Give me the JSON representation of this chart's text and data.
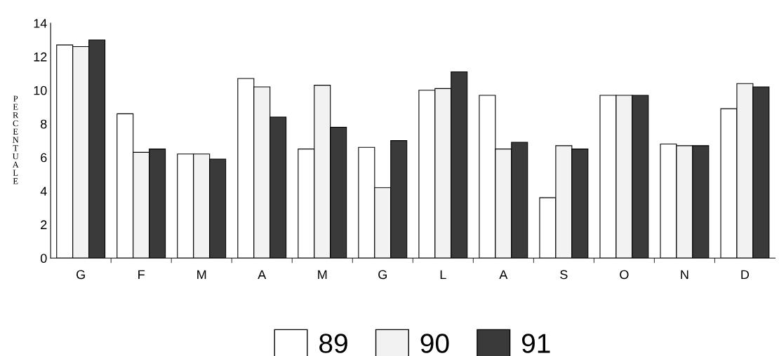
{
  "chart_data": {
    "type": "bar",
    "ylabel": "PERCENTUALE",
    "categories": [
      "G",
      "F",
      "M",
      "A",
      "M",
      "G",
      "L",
      "A",
      "S",
      "O",
      "N",
      "D"
    ],
    "series": [
      {
        "name": "89",
        "color": "#ffffff",
        "values": [
          12.7,
          8.6,
          6.2,
          10.7,
          6.5,
          6.6,
          10.0,
          9.7,
          3.6,
          9.7,
          6.8,
          8.9
        ]
      },
      {
        "name": "90",
        "color": "#f2f2f2",
        "values": [
          12.6,
          6.3,
          6.2,
          10.2,
          10.3,
          4.2,
          10.1,
          6.5,
          6.7,
          9.7,
          6.7,
          10.4
        ]
      },
      {
        "name": "91",
        "color": "#3a3a3a",
        "values": [
          13.0,
          6.5,
          5.9,
          8.4,
          7.8,
          7.0,
          11.1,
          6.9,
          6.5,
          9.7,
          6.7,
          10.2
        ]
      }
    ],
    "ylim": [
      0,
      14
    ],
    "yticks": [
      0,
      2,
      4,
      6,
      8,
      10,
      12,
      14
    ],
    "grid": false,
    "legend": "bottom"
  }
}
